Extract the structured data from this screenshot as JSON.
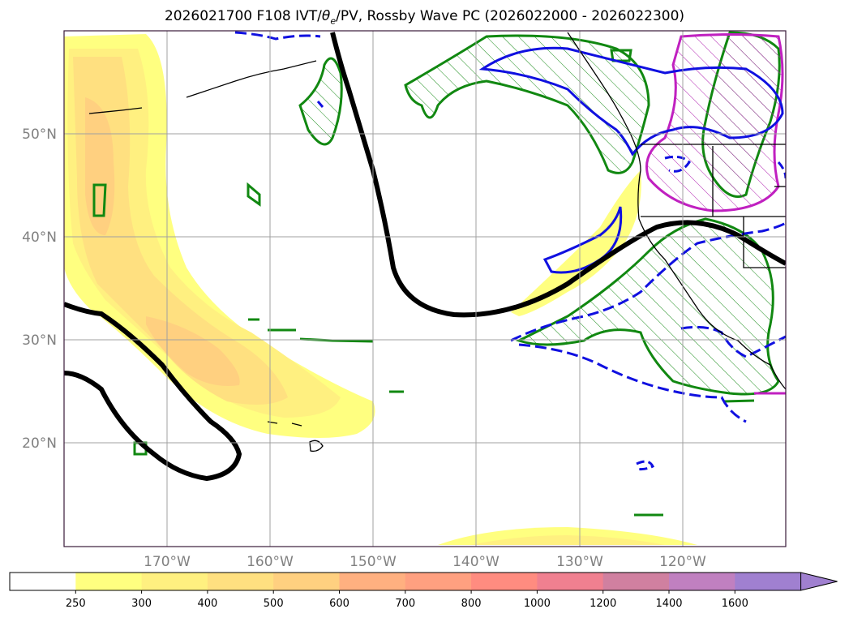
{
  "title": {
    "prefix": "2026021700 F108 IVT/",
    "theta": "θ",
    "theta_sub": "e",
    "suffix": "/PV, Rossby Wave PC (2026022000 - 2026022300)"
  },
  "latitude_labels": [
    "50°N",
    "40°N",
    "30°N",
    "20°N"
  ],
  "longitude_labels": [
    "170°W",
    "160°W",
    "150°W",
    "140°W",
    "130°W",
    "120°W"
  ],
  "colorbar": {
    "ticks": [
      "250",
      "300",
      "400",
      "500",
      "600",
      "700",
      "800",
      "1000",
      "1200",
      "1400",
      "1600"
    ],
    "colors": [
      "#ffffff",
      "#ffff80",
      "#fff080",
      "#ffe080",
      "#ffd080",
      "#ffb080",
      "#ffa080",
      "#ff8c80",
      "#f08090",
      "#d080a0",
      "#c080c0",
      "#a080d0"
    ],
    "extend": "max"
  }
}
